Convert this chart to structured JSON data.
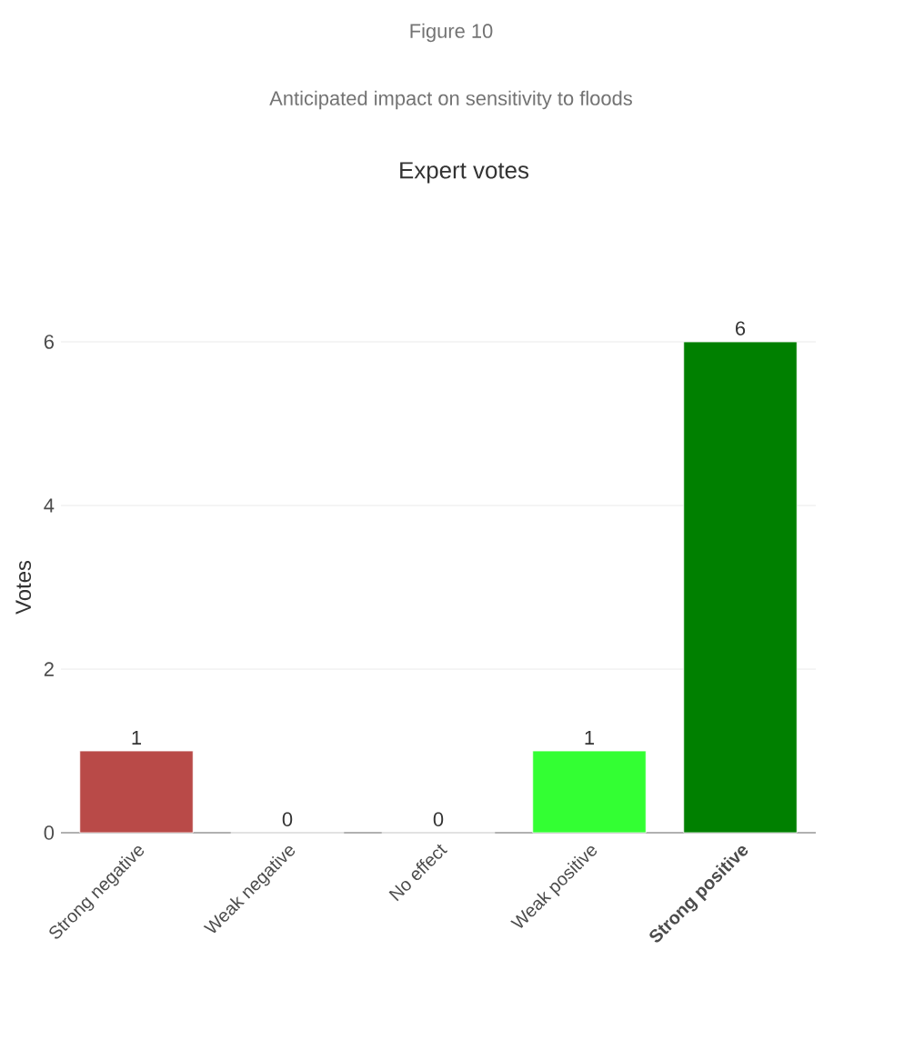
{
  "chart_data": {
    "type": "bar",
    "title": "Expert votes",
    "ylabel": "Votes",
    "annotations": [
      "Figure 10",
      "Anticipated impact on sensitivity to floods"
    ],
    "categories": [
      "Strong negative",
      "Weak negative",
      "No effect",
      "Weak positive",
      "**Strong positive**"
    ],
    "values": [
      1,
      0,
      0,
      1,
      6
    ],
    "colors": [
      "#b94a48",
      "#c0504d",
      "#999999",
      "#33ff33",
      "#008000"
    ],
    "ylim": [
      0,
      6
    ],
    "yticks": [
      0,
      2,
      4,
      6
    ],
    "grid": "y",
    "data_labels": true
  }
}
